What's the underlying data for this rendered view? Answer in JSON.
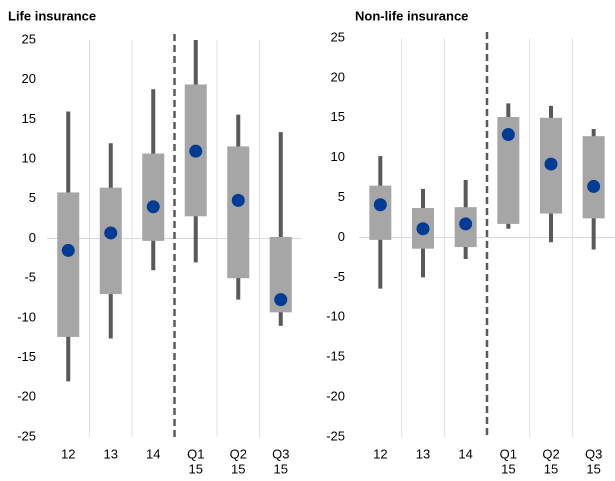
{
  "chart_data": [
    {
      "type": "range",
      "title": "Life insurance",
      "categories": [
        [
          "12"
        ],
        [
          "13"
        ],
        [
          "14"
        ],
        [
          "Q1",
          "15"
        ],
        [
          "Q2",
          "15"
        ],
        [
          "Q3",
          "15"
        ]
      ],
      "low": [
        -18,
        -12.6,
        -4,
        -3,
        -7.7,
        -11
      ],
      "box_low": [
        -12.4,
        -7,
        -0.3,
        2.8,
        -5,
        -9.3
      ],
      "box_high": [
        5.8,
        6.4,
        10.7,
        19.4,
        11.6,
        0.2
      ],
      "high": [
        16,
        12,
        18.8,
        25,
        15.6,
        13.4
      ],
      "values": [
        -1.5,
        0.7,
        4,
        11,
        4.8,
        -7.7
      ],
      "box_color": "#a6a6a6",
      "whisker_color": "#595959",
      "color": "#003b95",
      "ylim": [
        -25,
        25
      ],
      "yticks": [
        -25,
        -20,
        -15,
        -10,
        -5,
        0,
        5,
        10,
        15,
        20,
        25
      ],
      "divider_after": 2
    },
    {
      "type": "range",
      "title": "Non-life insurance",
      "categories": [
        [
          "12"
        ],
        [
          "13"
        ],
        [
          "14"
        ],
        [
          "Q1",
          "15"
        ],
        [
          "Q2",
          "15"
        ],
        [
          "Q3",
          "15"
        ]
      ],
      "low": [
        -6.4,
        -5,
        -2.7,
        1.1,
        -0.6,
        -1.5
      ],
      "box_low": [
        -0.3,
        -1.4,
        -1.2,
        1.7,
        3,
        2.4
      ],
      "box_high": [
        6.5,
        3.7,
        3.8,
        15.1,
        15,
        12.7
      ],
      "high": [
        10.2,
        6.1,
        7.2,
        16.8,
        16.5,
        13.6
      ],
      "values": [
        4.1,
        1.1,
        1.7,
        12.9,
        9.2,
        6.4
      ],
      "box_color": "#a6a6a6",
      "whisker_color": "#595959",
      "color": "#003b95",
      "ylim": [
        -25,
        25
      ],
      "yticks": [
        -25,
        -20,
        -15,
        -10,
        -5,
        0,
        5,
        10,
        15,
        20,
        25
      ],
      "divider_after": 2
    }
  ]
}
